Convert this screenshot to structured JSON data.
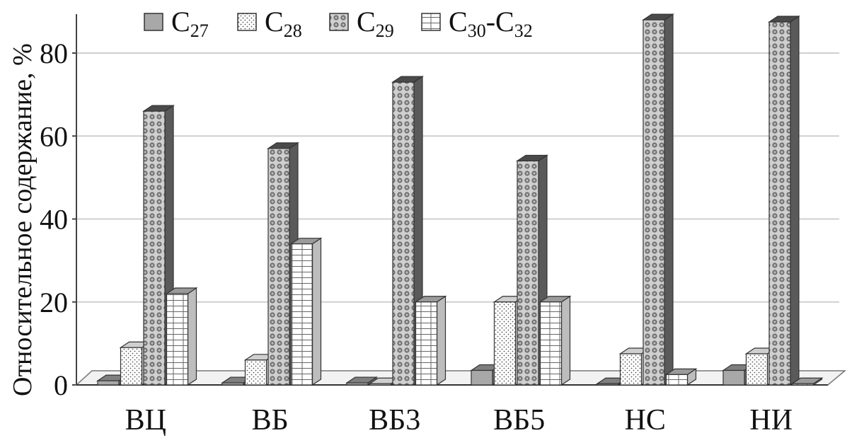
{
  "chart_data": {
    "type": "bar",
    "ylabel": "Относительное содержание, %",
    "ylim": [
      0,
      90
    ],
    "yticks": [
      0,
      20,
      40,
      60,
      80
    ],
    "grid": true,
    "legend_position": "top",
    "categories": [
      "ВЦ",
      "ВБ",
      "ВБ3",
      "ВБ5",
      "НС",
      "НИ"
    ],
    "series": [
      {
        "name": "C27",
        "display": {
          "base": "C",
          "sub": "27"
        },
        "pattern": "solid-gray",
        "color": "#a8a8a8",
        "values": [
          1,
          0.5,
          0.5,
          3.5,
          0.3,
          3.5
        ]
      },
      {
        "name": "C28",
        "display": {
          "base": "C",
          "sub": "28"
        },
        "pattern": "dots",
        "color": "#ffffff",
        "values": [
          9,
          6,
          0.3,
          20,
          7.5,
          7.5
        ]
      },
      {
        "name": "C29",
        "display": {
          "base": "C",
          "sub": "29"
        },
        "pattern": "checker",
        "color": "#8a8a8a",
        "values": [
          66,
          57,
          73,
          54,
          88,
          87.5
        ]
      },
      {
        "name": "C30-C32",
        "display": {
          "base": "C",
          "sub": "30",
          "sep": "-",
          "base2": "C",
          "sub2": "32"
        },
        "pattern": "bricks",
        "color": "#ffffff",
        "values": [
          22,
          34,
          20,
          20,
          2.5,
          0.3
        ]
      }
    ]
  }
}
